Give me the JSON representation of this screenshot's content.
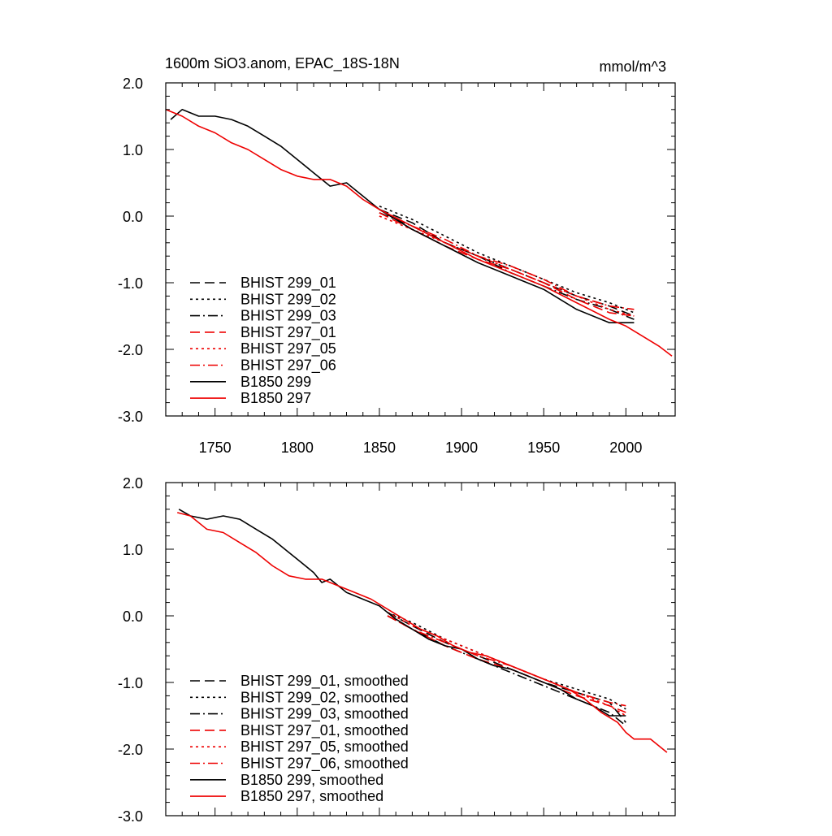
{
  "chart_data": [
    {
      "type": "line",
      "title": "1600m SiO3.anom, EPAC_18S-18N",
      "units": "mmol/m^3",
      "xlim": [
        1720,
        2030
      ],
      "ylim": [
        -3.0,
        2.0
      ],
      "xticks": [
        1750,
        1800,
        1850,
        1900,
        1950,
        2000
      ],
      "yticks": [
        "2.0",
        "1.0",
        "0.0",
        "-1.0",
        "-2.0",
        "-3.0"
      ],
      "show_x_labels": true,
      "legend_position": "lower-left",
      "series": [
        {
          "name": "BHIST 299_01",
          "color": "#000000",
          "dash": "dashed",
          "x": [
            1850,
            1870,
            1890,
            1910,
            1930,
            1950,
            1970,
            1990,
            2005
          ],
          "y": [
            0.1,
            -0.1,
            -0.4,
            -0.6,
            -0.8,
            -1.0,
            -1.2,
            -1.35,
            -1.5
          ]
        },
        {
          "name": "BHIST 299_02",
          "color": "#000000",
          "dash": "dotted",
          "x": [
            1850,
            1870,
            1890,
            1910,
            1930,
            1950,
            1970,
            1990,
            2005
          ],
          "y": [
            0.15,
            -0.05,
            -0.3,
            -0.55,
            -0.75,
            -0.95,
            -1.15,
            -1.3,
            -1.45
          ]
        },
        {
          "name": "BHIST 299_03",
          "color": "#000000",
          "dash": "dashdot",
          "x": [
            1850,
            1870,
            1890,
            1910,
            1930,
            1950,
            1970,
            1990,
            2005
          ],
          "y": [
            0.05,
            -0.15,
            -0.4,
            -0.6,
            -0.85,
            -1.05,
            -1.25,
            -1.4,
            -1.55
          ]
        },
        {
          "name": "BHIST 297_01",
          "color": "#ee0000",
          "dash": "dashed",
          "x": [
            1850,
            1870,
            1890,
            1910,
            1930,
            1950,
            1970,
            1990,
            2005
          ],
          "y": [
            0.05,
            -0.2,
            -0.45,
            -0.65,
            -0.8,
            -1.0,
            -1.25,
            -1.45,
            -1.5
          ]
        },
        {
          "name": "BHIST 297_05",
          "color": "#ee0000",
          "dash": "dotted",
          "x": [
            1850,
            1870,
            1890,
            1910,
            1930,
            1950,
            1970,
            1990,
            2005
          ],
          "y": [
            0.0,
            -0.2,
            -0.4,
            -0.6,
            -0.8,
            -1.0,
            -1.2,
            -1.4,
            -1.5
          ]
        },
        {
          "name": "BHIST 297_06",
          "color": "#ee0000",
          "dash": "dashdot",
          "x": [
            1850,
            1870,
            1890,
            1910,
            1930,
            1950,
            1970,
            1990,
            2005
          ],
          "y": [
            0.1,
            -0.15,
            -0.35,
            -0.6,
            -0.75,
            -0.95,
            -1.2,
            -1.35,
            -1.4
          ]
        },
        {
          "name": "B1850 299",
          "color": "#000000",
          "dash": "solid",
          "x": [
            1723,
            1730,
            1740,
            1750,
            1760,
            1770,
            1780,
            1790,
            1800,
            1810,
            1820,
            1830,
            1840,
            1850,
            1870,
            1890,
            1910,
            1930,
            1950,
            1970,
            1990,
            2005
          ],
          "y": [
            1.45,
            1.6,
            1.5,
            1.5,
            1.45,
            1.35,
            1.2,
            1.05,
            0.85,
            0.65,
            0.45,
            0.5,
            0.3,
            0.1,
            -0.2,
            -0.45,
            -0.7,
            -0.9,
            -1.1,
            -1.4,
            -1.6,
            -1.6
          ]
        },
        {
          "name": "B1850 297",
          "color": "#ee0000",
          "dash": "solid",
          "x": [
            1720,
            1730,
            1740,
            1750,
            1760,
            1770,
            1780,
            1790,
            1800,
            1810,
            1820,
            1830,
            1840,
            1850,
            1870,
            1890,
            1910,
            1930,
            1950,
            1970,
            1990,
            2000,
            2010,
            2020,
            2028
          ],
          "y": [
            1.6,
            1.5,
            1.35,
            1.25,
            1.1,
            1.0,
            0.85,
            0.7,
            0.6,
            0.55,
            0.55,
            0.45,
            0.25,
            0.1,
            -0.15,
            -0.4,
            -0.65,
            -0.85,
            -1.05,
            -1.3,
            -1.55,
            -1.65,
            -1.8,
            -1.95,
            -2.1
          ]
        }
      ]
    },
    {
      "type": "line",
      "xlim": [
        1720,
        2030
      ],
      "ylim": [
        -3.0,
        2.0
      ],
      "xticks": [
        1750,
        1800,
        1850,
        1900,
        1950,
        2000
      ],
      "yticks": [
        "2.0",
        "1.0",
        "0.0",
        "-1.0",
        "-2.0",
        "-3.0"
      ],
      "show_x_labels": false,
      "legend_position": "lower-left",
      "series": [
        {
          "name": "BHIST 299_01, smoothed",
          "color": "#000000",
          "dash": "dashed",
          "x": [
            1855,
            1870,
            1890,
            1910,
            1930,
            1950,
            1970,
            1990,
            2000
          ],
          "y": [
            0.05,
            -0.15,
            -0.4,
            -0.6,
            -0.8,
            -1.0,
            -1.15,
            -1.3,
            -1.6
          ]
        },
        {
          "name": "BHIST 299_02, smoothed",
          "color": "#000000",
          "dash": "dotted",
          "x": [
            1855,
            1870,
            1890,
            1910,
            1930,
            1950,
            1970,
            1990,
            2000
          ],
          "y": [
            0.05,
            -0.1,
            -0.35,
            -0.55,
            -0.75,
            -0.95,
            -1.1,
            -1.25,
            -1.4
          ]
        },
        {
          "name": "BHIST 299_03, smoothed",
          "color": "#000000",
          "dash": "dashdot",
          "x": [
            1855,
            1870,
            1890,
            1910,
            1930,
            1950,
            1970,
            1990,
            2000
          ],
          "y": [
            0.0,
            -0.2,
            -0.45,
            -0.65,
            -0.85,
            -1.05,
            -1.25,
            -1.45,
            -1.65
          ]
        },
        {
          "name": "BHIST 297_01, smoothed",
          "color": "#ee0000",
          "dash": "dashed",
          "x": [
            1855,
            1870,
            1890,
            1910,
            1930,
            1950,
            1970,
            1990,
            2000
          ],
          "y": [
            0.0,
            -0.2,
            -0.45,
            -0.65,
            -0.8,
            -1.0,
            -1.2,
            -1.35,
            -1.45
          ]
        },
        {
          "name": "BHIST 297_05, smoothed",
          "color": "#ee0000",
          "dash": "dotted",
          "x": [
            1855,
            1870,
            1890,
            1910,
            1930,
            1950,
            1970,
            1990,
            2000
          ],
          "y": [
            0.05,
            -0.15,
            -0.35,
            -0.55,
            -0.75,
            -0.95,
            -1.15,
            -1.35,
            -1.5
          ]
        },
        {
          "name": "BHIST 297_06, smoothed",
          "color": "#ee0000",
          "dash": "dashdot",
          "x": [
            1855,
            1870,
            1890,
            1910,
            1930,
            1950,
            1970,
            1990,
            2000
          ],
          "y": [
            0.0,
            -0.2,
            -0.4,
            -0.6,
            -0.75,
            -0.95,
            -1.15,
            -1.3,
            -1.35
          ]
        },
        {
          "name": "B1850 299, smoothed",
          "color": "#000000",
          "dash": "solid",
          "x": [
            1728,
            1735,
            1745,
            1755,
            1765,
            1775,
            1785,
            1795,
            1800,
            1810,
            1815,
            1820,
            1830,
            1840,
            1850,
            1860,
            1870,
            1880,
            1890,
            1900,
            1910,
            1920,
            1930,
            1940,
            1950,
            1960,
            1970,
            1980,
            1990,
            2000
          ],
          "y": [
            1.6,
            1.5,
            1.45,
            1.5,
            1.45,
            1.3,
            1.15,
            0.95,
            0.85,
            0.65,
            0.5,
            0.55,
            0.35,
            0.25,
            0.15,
            -0.05,
            -0.2,
            -0.35,
            -0.45,
            -0.5,
            -0.65,
            -0.75,
            -0.8,
            -0.9,
            -1.0,
            -1.1,
            -1.25,
            -1.35,
            -1.5,
            -1.5
          ]
        },
        {
          "name": "B1850 297, smoothed",
          "color": "#ee0000",
          "dash": "solid",
          "x": [
            1727,
            1735,
            1745,
            1755,
            1765,
            1775,
            1785,
            1795,
            1805,
            1815,
            1825,
            1835,
            1845,
            1855,
            1865,
            1875,
            1885,
            1895,
            1905,
            1915,
            1925,
            1935,
            1945,
            1955,
            1965,
            1975,
            1985,
            1995,
            2000,
            2005,
            2015,
            2025
          ],
          "y": [
            1.55,
            1.5,
            1.3,
            1.25,
            1.1,
            0.95,
            0.75,
            0.6,
            0.55,
            0.55,
            0.45,
            0.35,
            0.25,
            0.1,
            -0.05,
            -0.2,
            -0.3,
            -0.45,
            -0.55,
            -0.6,
            -0.7,
            -0.8,
            -0.9,
            -1.0,
            -1.1,
            -1.25,
            -1.45,
            -1.6,
            -1.75,
            -1.85,
            -1.85,
            -2.05
          ]
        }
      ]
    }
  ]
}
